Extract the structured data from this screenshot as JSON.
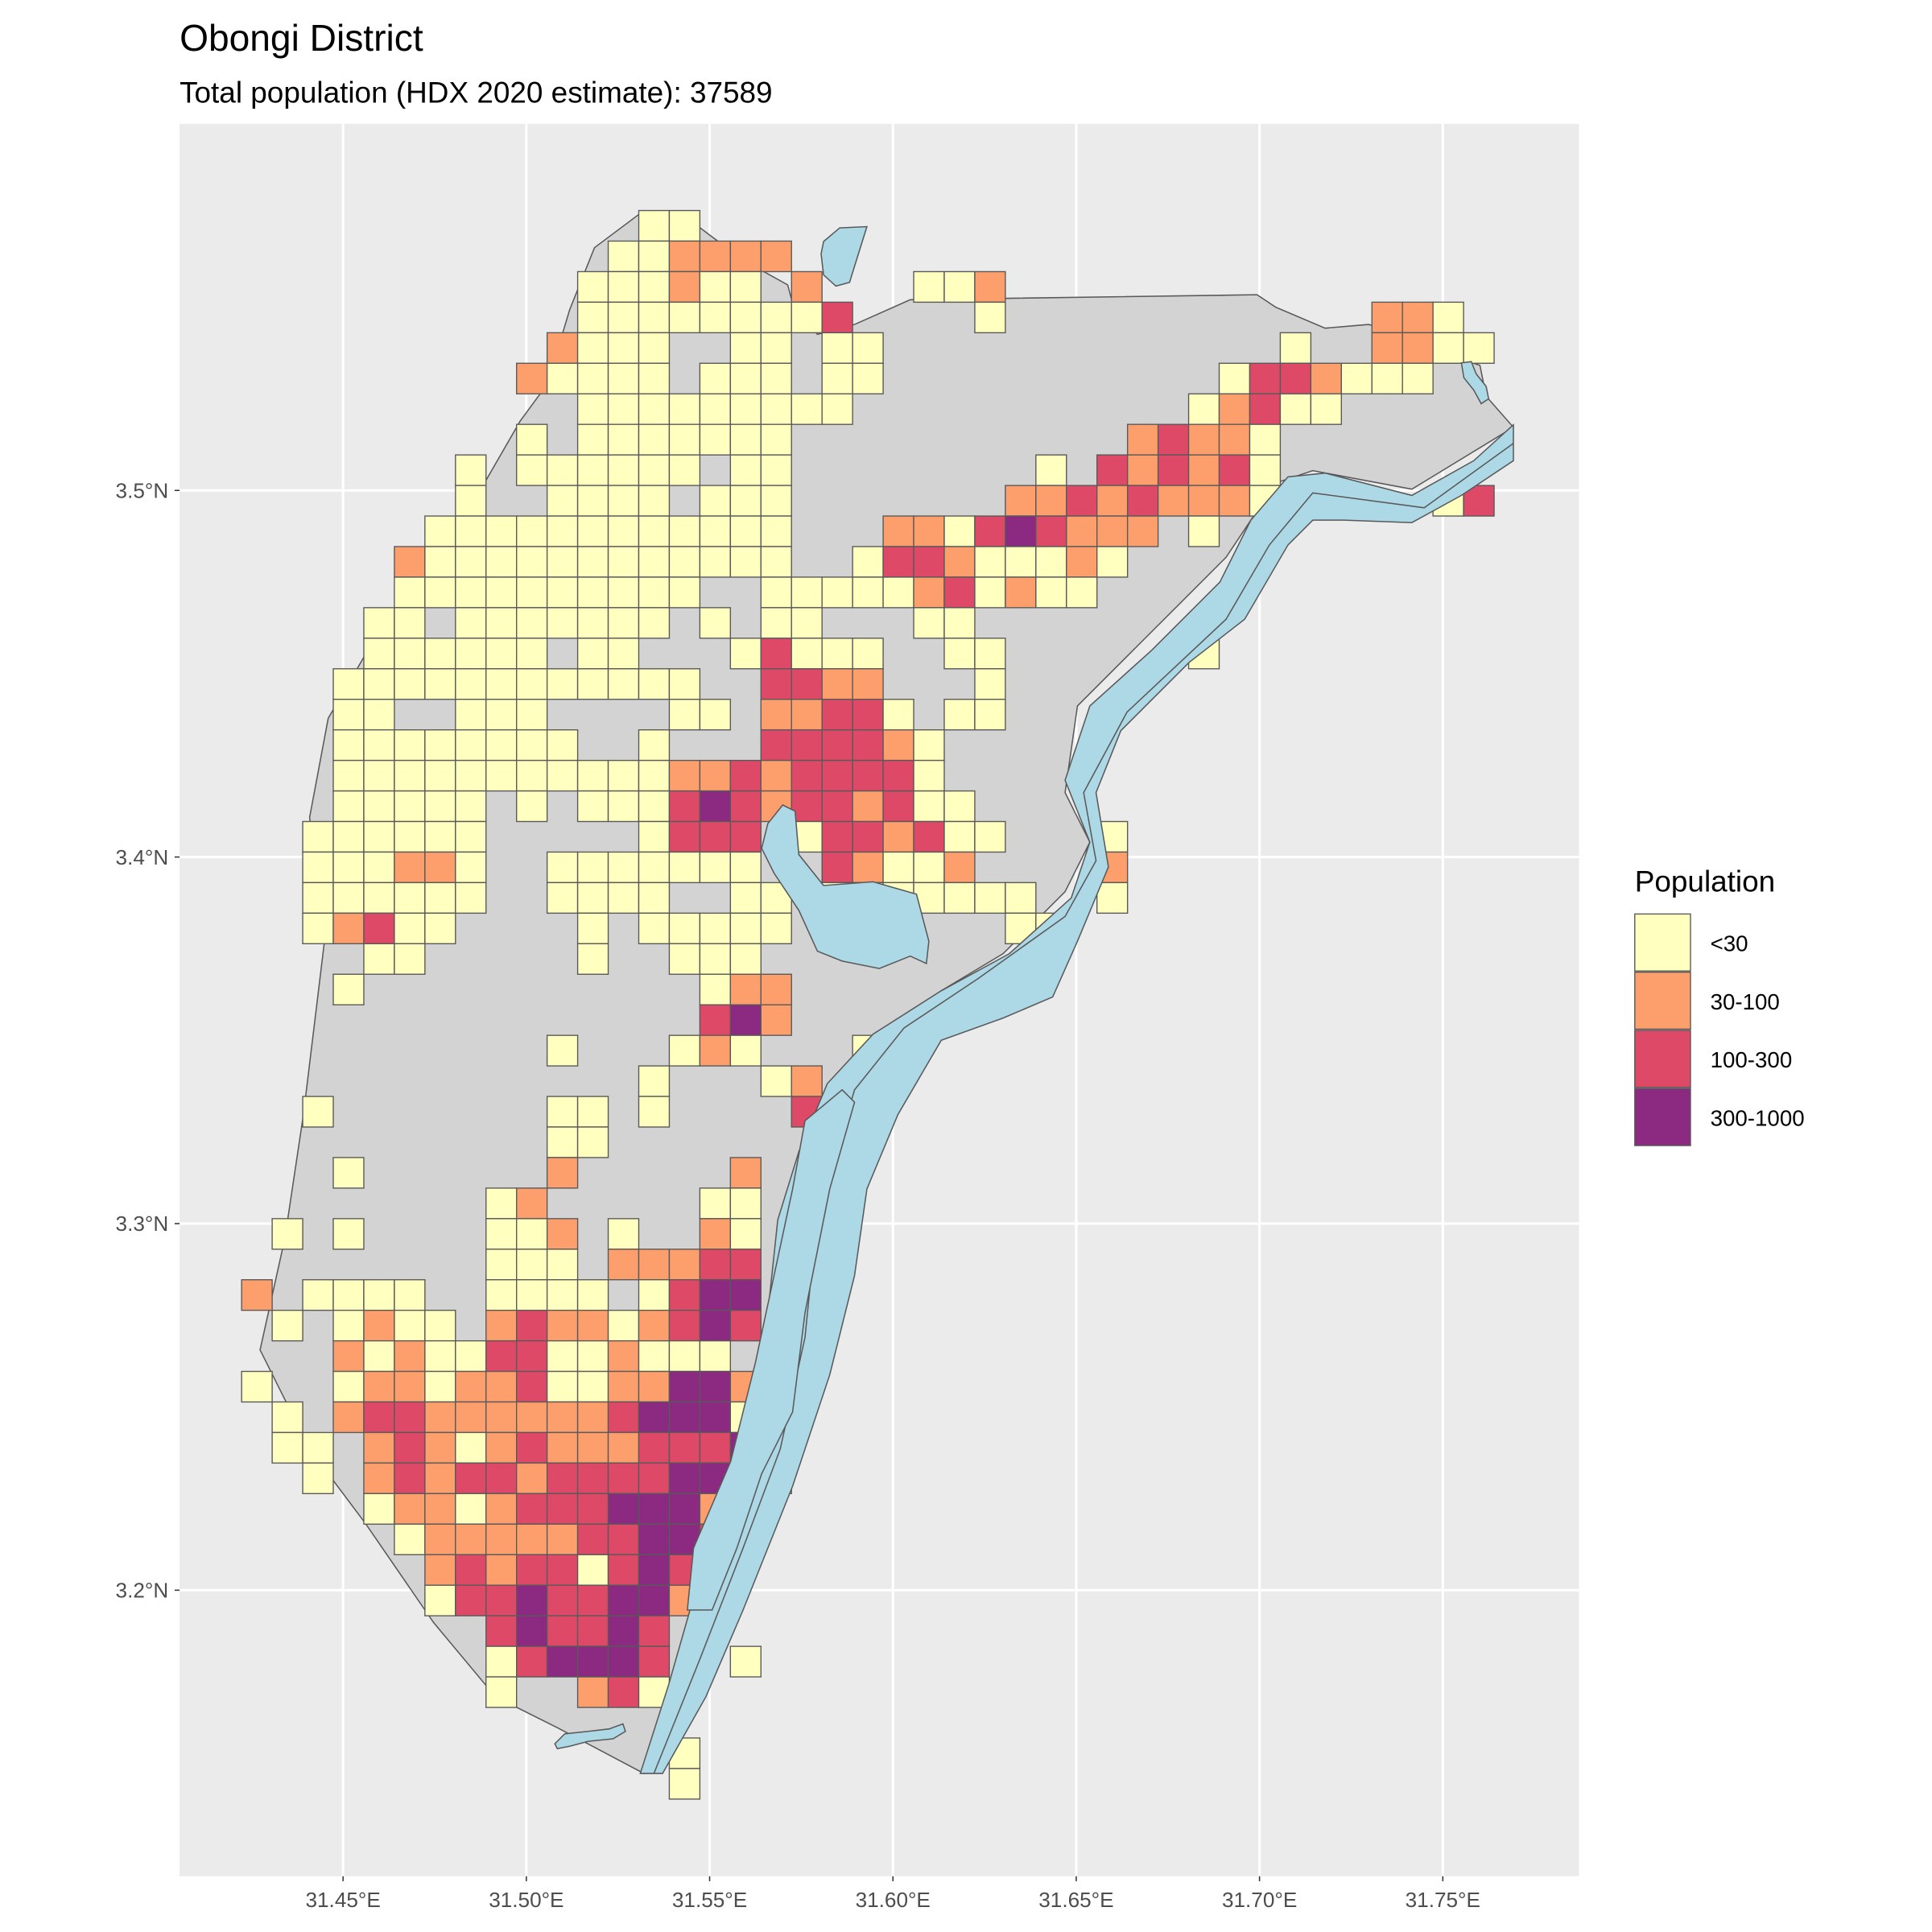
{
  "title": "Obongi District",
  "subtitle": "Total population (HDX 2020 estimate): 37589",
  "colors": {
    "panel": "#EBEBEB",
    "gridline": "#FFFFFF",
    "land": "#D3D3D3",
    "water": "#ADD8E6",
    "outline": "#595959"
  },
  "chart_data": {
    "type": "heatmap",
    "title": "Obongi District",
    "subtitle": "Total population (HDX 2020 estimate): 37589",
    "x_axis": {
      "ticks": [
        31.45,
        31.5,
        31.55,
        31.6,
        31.65,
        31.7,
        31.75
      ],
      "labels": [
        "31.45°E",
        "31.50°E",
        "31.55°E",
        "31.60°E",
        "31.65°E",
        "31.70°E",
        "31.75°E"
      ]
    },
    "y_axis": {
      "ticks": [
        3.5,
        3.4,
        3.3,
        3.2
      ],
      "labels": [
        "3.5°N",
        "3.4°N",
        "3.3°N",
        "3.2°N"
      ]
    },
    "grid": true,
    "cell_size_deg": 0.008333,
    "legend": {
      "title": "Population",
      "position": "right",
      "classes": [
        {
          "code": "1",
          "label": "<30",
          "color": "#FFFFBF"
        },
        {
          "code": "2",
          "label": "30-100",
          "color": "#FD9F6C"
        },
        {
          "code": "3",
          "label": "100-300",
          "color": "#DE4968"
        },
        {
          "code": "4",
          "label": "300-1000",
          "color": "#8C2981"
        }
      ]
    },
    "grid_rows_note_codes": "each row lists [start_column, class codes] from north to south; '.' = no cell",
    "rows": [
      [
        [
          13,
          "11"
        ]
      ],
      [
        [
          12,
          "112222"
        ]
      ],
      [
        [
          11,
          "111211.2...112"
        ]
      ],
      [
        [
          11,
          "111111113....1"
        ],
        [
          37,
          "221"
        ]
      ],
      [
        [
          10,
          "2111..11.11"
        ],
        [
          34,
          "1..2211"
        ]
      ],
      [
        [
          9,
          "21111.111.11"
        ],
        [
          32,
          "1332111"
        ]
      ],
      [
        [
          11,
          "111111111"
        ],
        [
          31,
          "12311"
        ]
      ],
      [
        [
          9,
          "1.1111111"
        ],
        [
          29,
          "23221"
        ]
      ],
      [
        [
          7,
          "1.111111.11"
        ],
        [
          26,
          "1.323231"
        ]
      ],
      [
        [
          7,
          "1..1111.111"
        ],
        [
          25,
          "223232221"
        ],
        [
          39,
          "13"
        ]
      ],
      [
        [
          6,
          "111111111111"
        ],
        [
          21,
          "221343222.1"
        ]
      ],
      [
        [
          5,
          "2111111111111"
        ],
        [
          20,
          "133211121"
        ]
      ],
      [
        [
          5,
          "1111111111"
        ],
        [
          17,
          "11111231211"
        ]
      ],
      [
        [
          4,
          "11.1111111.1.11"
        ],
        [
          22,
          "11"
        ]
      ],
      [
        [
          4,
          "111111.11...13111"
        ],
        [
          23,
          "11"
        ],
        [
          31,
          "1"
        ]
      ],
      [
        [
          3,
          "111111111111..3322...1"
        ]
      ],
      [
        [
          3,
          "11..111....11.22331.11"
        ]
      ],
      [
        [
          3,
          "11111111..1...333321"
        ]
      ],
      [
        [
          3,
          "11111111111223233331"
        ]
      ],
      [
        [
          3,
          "11111.1.1113432332311"
        ]
      ],
      [
        [
          2,
          "111111.....1333.1332311"
        ],
        [
          28,
          "1"
        ]
      ],
      [
        [
          2,
          "111221..1111111..32112"
        ],
        [
          28,
          "2"
        ]
      ],
      [
        [
          2,
          "111111..1111..11.1111111"
        ],
        [
          28,
          "1"
        ]
      ],
      [
        [
          2,
          "12311....1.11111"
        ],
        [
          25,
          "11"
        ]
      ],
      [
        [
          4,
          "11"
        ],
        [
          11,
          "1"
        ],
        [
          14,
          "111"
        ]
      ],
      [
        [
          3,
          "1"
        ],
        [
          15,
          "122"
        ]
      ],
      [
        [
          15,
          "342"
        ]
      ],
      [
        [
          10,
          "1"
        ],
        [
          14,
          "121"
        ],
        [
          20,
          "11"
        ]
      ],
      [
        [
          13,
          "1"
        ],
        [
          17,
          "12.2"
        ]
      ],
      [
        [
          2,
          "1"
        ],
        [
          10,
          "11.1"
        ],
        [
          18,
          "3"
        ]
      ],
      [
        [
          10,
          "11"
        ]
      ],
      [
        [
          3,
          "1"
        ],
        [
          10,
          "2"
        ],
        [
          16,
          "2"
        ]
      ],
      [
        [
          8,
          "12"
        ],
        [
          15,
          "11"
        ]
      ],
      [
        [
          1,
          "1.1"
        ],
        [
          8,
          "112.1"
        ],
        [
          15,
          "21"
        ]
      ],
      [
        [
          8,
          "111.22233"
        ]
      ],
      [
        [
          0,
          "2.1111..1111.1344"
        ]
      ],
      [
        [
          1,
          "1.1211.232212343"
        ]
      ],
      [
        [
          3,
          "2121133112111"
        ]
      ],
      [
        [
          0,
          "1..12212231122442"
        ]
      ],
      [
        [
          1,
          "1.23322222234441"
        ]
      ],
      [
        [
          1,
          "11.2321232223334"
        ]
      ],
      [
        [
          2,
          "1.232332333344.1"
        ]
      ],
      [
        [
          4,
          "122123334442"
        ]
      ],
      [
        [
          5,
          "122222334433"
        ]
      ],
      [
        [
          6,
          "232331343"
        ]
      ],
      [
        [
          6,
          "133433442"
        ]
      ],
      [
        [
          8,
          "343343"
        ]
      ],
      [
        [
          8,
          "134443..1"
        ]
      ],
      [
        [
          8,
          "1..231"
        ]
      ],
      [],
      [
        [
          14,
          "1"
        ]
      ],
      [
        [
          14,
          "1"
        ]
      ]
    ]
  }
}
